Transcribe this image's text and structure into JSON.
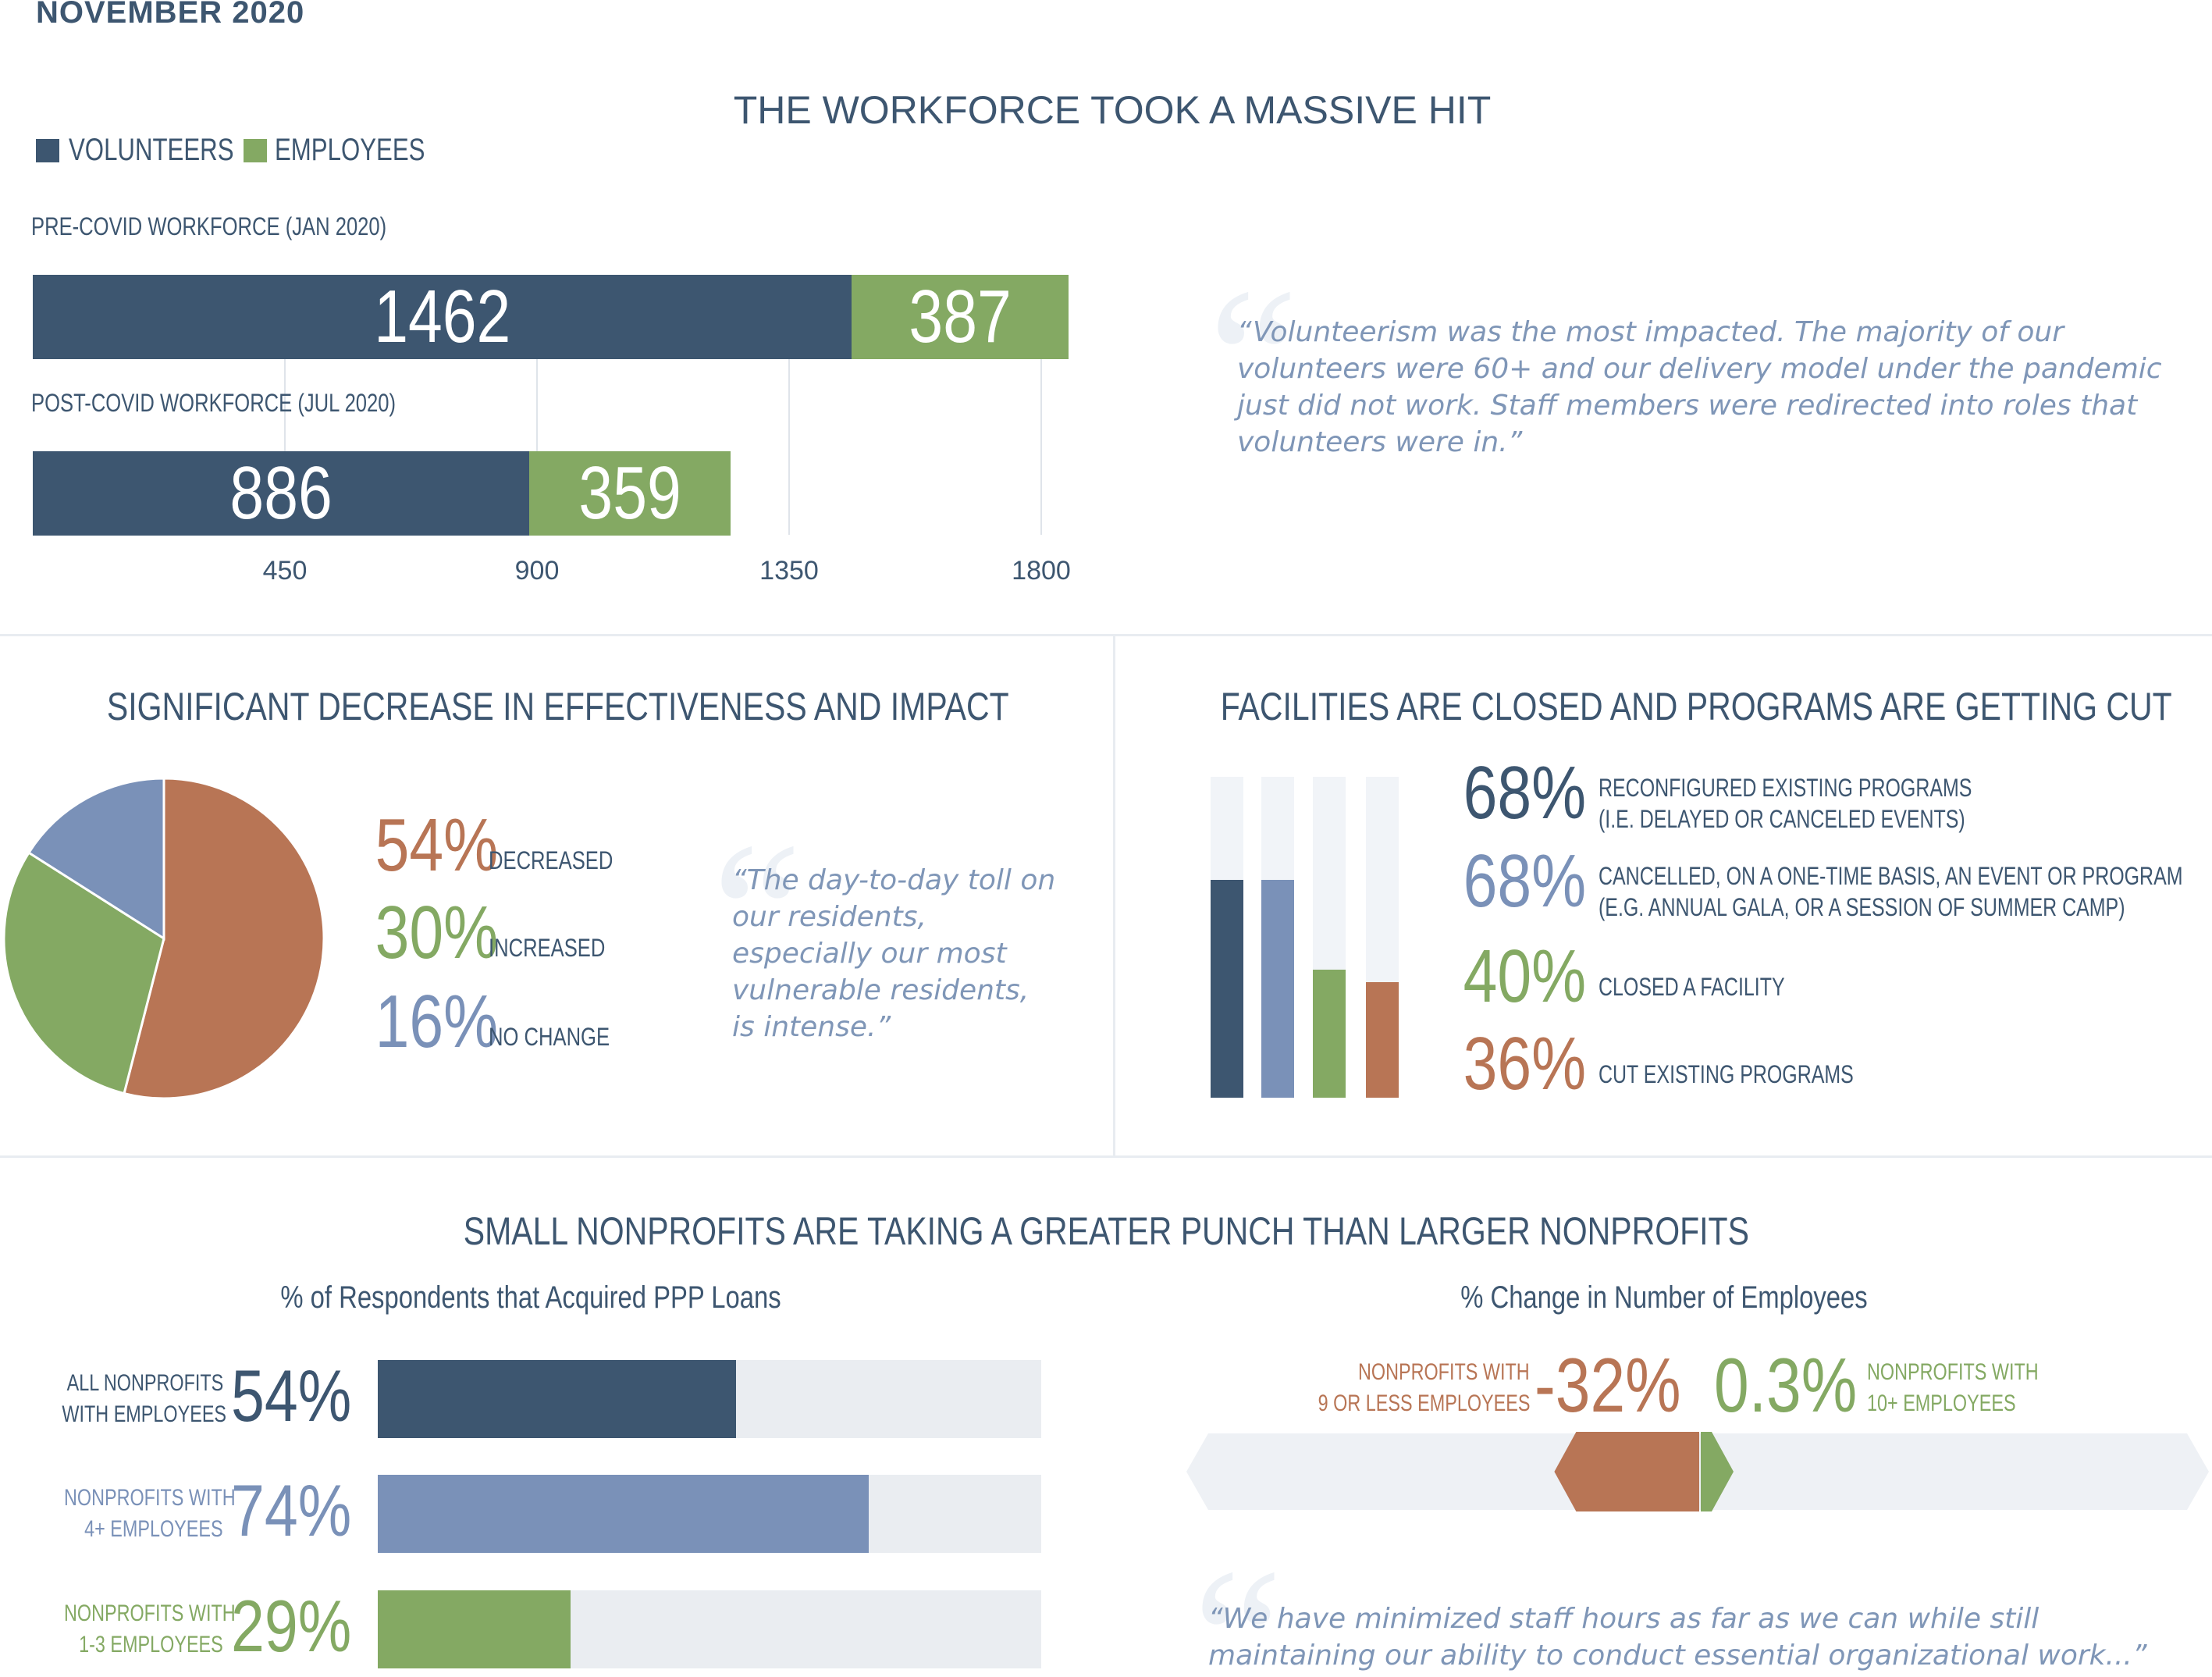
{
  "date": "NOVEMBER 2020",
  "colors": {
    "navy": "#3d5670",
    "slate_blue": "#7a91b8",
    "green": "#84a963",
    "terracotta": "#b87555",
    "track": "#eaedf1"
  },
  "workforce": {
    "title": "THE WORKFORCE TOOK A MASSIVE HIT",
    "legend": {
      "volunteers": "VOLUNTEERS",
      "employees": "EMPLOYEES"
    },
    "quote": "“Volunteerism was the most impacted. The majority of our volunteers were 60+ and our delivery model under the pandemic just did not work. Staff members were redirected into roles that volunteers were in.”"
  },
  "effectiveness": {
    "title": "SIGNIFICANT DECREASE IN EFFECTIVENESS AND IMPACT",
    "quote": "“The day-to-day toll on our residents, especially our most vulnerable residents, is intense.”",
    "icon": "pie-chart"
  },
  "facilities": {
    "title": "FACILITIES ARE CLOSED AND PROGRAMS ARE GETTING CUT"
  },
  "small_nonprofits": {
    "title": "SMALL NONPROFITS ARE TAKING A GREATER PUNCH THAN LARGER NONPROFITS",
    "ppp_title": "% of Respondents that Acquired PPP Loans",
    "change_title": "% Change in Number of Employees",
    "quote": "“We have minimized staff hours as far as we can while still maintaining our ability to conduct essential organizational work...”"
  },
  "chart_data": [
    {
      "type": "bar",
      "orientation": "horizontal",
      "stacked": true,
      "title": "THE WORKFORCE TOOK A MASSIVE HIT",
      "categories": [
        "PRE-COVID WORKFORCE (JAN 2020)",
        "POST-COVID WORKFORCE (JUL 2020)"
      ],
      "series": [
        {
          "name": "VOLUNTEERS",
          "values": [
            1462,
            886
          ],
          "labels": [
            "1462",
            "886"
          ]
        },
        {
          "name": "EMPLOYEES",
          "values": [
            387,
            359
          ],
          "labels": [
            "387",
            "359"
          ]
        }
      ],
      "xlim": [
        0,
        1800
      ],
      "xticks": [
        450,
        900,
        1350,
        1800
      ],
      "xtick_labels": [
        "450",
        "900",
        "1350",
        "1800"
      ],
      "grid": true,
      "legend": "top-left"
    },
    {
      "type": "pie",
      "title": "SIGNIFICANT DECREASE IN EFFECTIVENESS AND IMPACT",
      "slices": [
        {
          "label": "DECREASED",
          "value": 54,
          "pct": "54%",
          "color": "#b87555"
        },
        {
          "label": "INCREASED",
          "value": 30,
          "pct": "30%",
          "color": "#84a963"
        },
        {
          "label": "NO CHANGE",
          "value": 16,
          "pct": "16%",
          "color": "#7a91b8"
        }
      ]
    },
    {
      "type": "bar",
      "orientation": "vertical",
      "title": "FACILITIES ARE CLOSED AND PROGRAMS ARE GETTING CUT",
      "ylim": [
        0,
        100
      ],
      "items": [
        {
          "pct": "68%",
          "value": 68,
          "line1": "RECONFIGURED EXISTING PROGRAMS",
          "line2": "(I.E. DELAYED OR CANCELED EVENTS)",
          "color": "#3d5670"
        },
        {
          "pct": "68%",
          "value": 68,
          "line1": "CANCELLED, ON A ONE-TIME BASIS, AN EVENT OR PROGRAM",
          "line2": "(E.G. ANNUAL GALA, OR A SESSION OF SUMMER CAMP)",
          "color": "#7a91b8"
        },
        {
          "pct": "40%",
          "value": 40,
          "line1": "CLOSED A FACILITY",
          "line2": "",
          "color": "#84a963"
        },
        {
          "pct": "36%",
          "value": 36,
          "line1": "CUT EXISTING PROGRAMS",
          "line2": "",
          "color": "#b87555"
        }
      ]
    },
    {
      "type": "bar",
      "orientation": "horizontal",
      "title": "% of Respondents that Acquired PPP Loans",
      "xlim": [
        0,
        100
      ],
      "items": [
        {
          "line1": "ALL NONPROFITS",
          "line2": "WITH EMPLOYEES",
          "value": 54,
          "pct": "54%",
          "color": "#3d5670"
        },
        {
          "line1": "NONPROFITS WITH",
          "line2": "4+ EMPLOYEES",
          "value": 74,
          "pct": "74%",
          "color": "#7a91b8"
        },
        {
          "line1": "NONPROFITS WITH",
          "line2": "1-3 EMPLOYEES",
          "value": 29,
          "pct": "29%",
          "color": "#84a963"
        }
      ]
    },
    {
      "type": "bar",
      "orientation": "horizontal",
      "diverging": true,
      "title": "% Change in Number of Employees",
      "items": [
        {
          "line1": "NONPROFITS WITH",
          "line2": "9 OR LESS EMPLOYEES",
          "value": -32,
          "pct": "-32%",
          "color": "#b87555"
        },
        {
          "line1": "NONPROFITS WITH",
          "line2": "10+ EMPLOYEES",
          "value": 0.3,
          "pct": "0.3%",
          "color": "#84a963"
        }
      ]
    }
  ]
}
